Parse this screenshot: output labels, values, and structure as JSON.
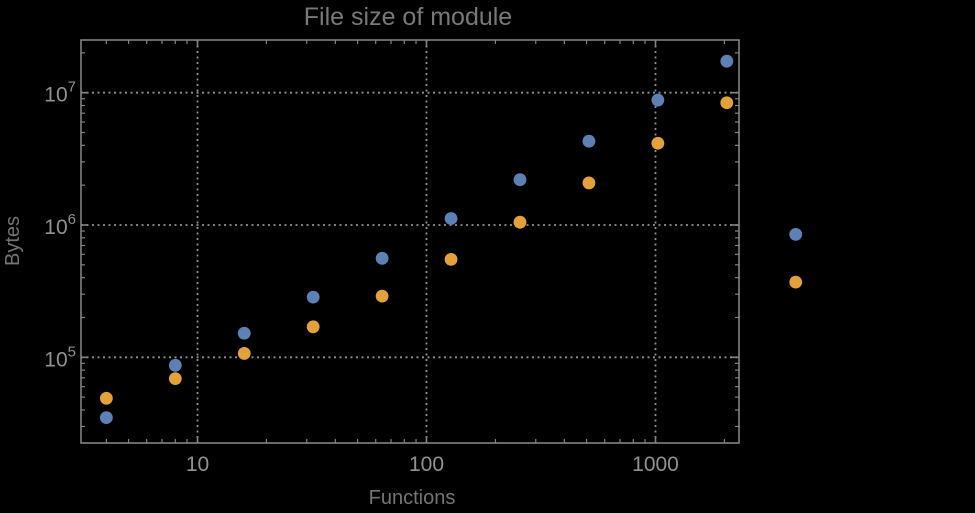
{
  "title": "File size of module",
  "colors": {
    "background": "#000000",
    "frame": "#828282",
    "grid": "#8f8f8f",
    "tick_label": "#919191",
    "axis_label": "#747474",
    "title": "#787878",
    "series_blue": "#5E81B5",
    "series_orange": "#E2A13B"
  },
  "axes": {
    "x": {
      "label": "Functions",
      "scale": "log",
      "tick_labels": [
        "10",
        "100",
        "1000"
      ],
      "tick_values": [
        10,
        100,
        1000
      ]
    },
    "y": {
      "label": "Bytes",
      "scale": "log",
      "tick_labels": [
        {
          "base": "10",
          "exp": "5"
        },
        {
          "base": "10",
          "exp": "6"
        },
        {
          "base": "10",
          "exp": "7"
        }
      ],
      "tick_values": [
        100000,
        1000000,
        10000000
      ]
    }
  },
  "chart_data": {
    "type": "scatter",
    "title": "File size of module",
    "xlabel": "Functions",
    "ylabel": "Bytes",
    "x_scale": "log",
    "y_scale": "log",
    "xlim": [
      3.1,
      2300
    ],
    "ylim": [
      22500,
      25000000
    ],
    "grid": "dotted lines at decades, both axes",
    "legend": "none",
    "marker": "filled-circle",
    "x": [
      4,
      8,
      16,
      32,
      64,
      128,
      256,
      512,
      1024,
      2048,
      4096
    ],
    "series": [
      {
        "name": "blue",
        "color": "#5E81B5",
        "values": [
          35000,
          87000,
          152000,
          285000,
          560000,
          1120000,
          2200000,
          4300000,
          8800000,
          17300000,
          850000
        ]
      },
      {
        "name": "orange",
        "color": "#E2A13B",
        "values": [
          49000,
          69000,
          107000,
          170000,
          290000,
          550000,
          1050000,
          2080000,
          4150000,
          8400000,
          370000
        ]
      }
    ],
    "note": "last data points (x=4096) are drawn outside the right edge of the plot frame"
  }
}
